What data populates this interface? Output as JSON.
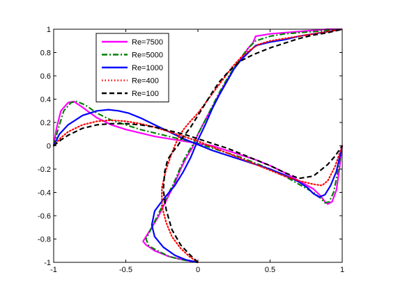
{
  "chart_data": {
    "type": "line",
    "title": "",
    "xlabel": "",
    "ylabel": "",
    "xlim": [
      -1,
      1
    ],
    "ylim": [
      -1,
      1
    ],
    "xticks": [
      -1,
      -0.5,
      0,
      0.5,
      1
    ],
    "xtick_labels": [
      "-1",
      "-0.5",
      "0",
      "0.5",
      "1"
    ],
    "yticks": [
      -1,
      -0.8,
      -0.6,
      -0.4,
      -0.2,
      0,
      0.2,
      0.4,
      0.6,
      0.8,
      1
    ],
    "ytick_labels": [
      "-1",
      "-0.8",
      "-0.6",
      "-0.4",
      "-0.2",
      "0",
      "0.2",
      "0.4",
      "0.6",
      "0.8",
      "1"
    ],
    "grid": false,
    "legend_position": "top-left",
    "series": [
      {
        "name": "Re=7500",
        "color": "#ff00ff",
        "dash": "solid",
        "curves": [
          {
            "x": [
              -1,
              -0.98,
              -0.95,
              -0.9,
              -0.86,
              -0.8,
              -0.7,
              -0.6,
              -0.5,
              -0.4,
              -0.3,
              -0.2,
              -0.1,
              0,
              0.1,
              0.2,
              0.3,
              0.4,
              0.5,
              0.6,
              0.7,
              0.8,
              0.85,
              0.88,
              0.9,
              0.93,
              0.96,
              0.98,
              1
            ],
            "y": [
              0,
              0.15,
              0.3,
              0.37,
              0.38,
              0.33,
              0.24,
              0.18,
              0.14,
              0.11,
              0.08,
              0.06,
              0.04,
              0.02,
              0.0,
              -0.04,
              -0.08,
              -0.12,
              -0.17,
              -0.23,
              -0.3,
              -0.37,
              -0.43,
              -0.48,
              -0.5,
              -0.48,
              -0.38,
              -0.2,
              0
            ]
          },
          {
            "x": [
              0.0,
              -0.1,
              -0.2,
              -0.3,
              -0.36,
              -0.38,
              -0.33,
              -0.28,
              -0.24,
              -0.2,
              -0.16,
              -0.12,
              -0.08,
              -0.04,
              0.0,
              0.05,
              0.1,
              0.15,
              0.2,
              0.25,
              0.3,
              0.35,
              0.38,
              0.4,
              0.5,
              0.6,
              0.7,
              0.8,
              0.9,
              1.0
            ],
            "y": [
              -1.0,
              -0.98,
              -0.95,
              -0.9,
              -0.85,
              -0.82,
              -0.72,
              -0.62,
              -0.52,
              -0.42,
              -0.32,
              -0.2,
              -0.1,
              -0.02,
              0.1,
              0.22,
              0.33,
              0.45,
              0.56,
              0.66,
              0.75,
              0.84,
              0.88,
              0.94,
              0.96,
              0.97,
              0.98,
              0.99,
              1.0,
              1.0
            ]
          }
        ]
      },
      {
        "name": "Re=5000",
        "color": "#008000",
        "dash": "dashdot",
        "curves": [
          {
            "x": [
              -1,
              -0.97,
              -0.93,
              -0.88,
              -0.84,
              -0.78,
              -0.7,
              -0.6,
              -0.5,
              -0.4,
              -0.3,
              -0.2,
              -0.1,
              0,
              0.1,
              0.2,
              0.3,
              0.4,
              0.5,
              0.6,
              0.7,
              0.8,
              0.85,
              0.88,
              0.91,
              0.94,
              0.97,
              1
            ],
            "y": [
              0,
              0.14,
              0.3,
              0.37,
              0.38,
              0.35,
              0.28,
              0.22,
              0.18,
              0.14,
              0.11,
              0.08,
              0.05,
              0.02,
              -0.02,
              -0.06,
              -0.1,
              -0.15,
              -0.2,
              -0.26,
              -0.33,
              -0.4,
              -0.45,
              -0.49,
              -0.48,
              -0.4,
              -0.22,
              0
            ]
          },
          {
            "x": [
              0.0,
              -0.1,
              -0.2,
              -0.28,
              -0.34,
              -0.36,
              -0.32,
              -0.28,
              -0.24,
              -0.2,
              -0.16,
              -0.12,
              -0.08,
              -0.04,
              0.0,
              0.05,
              0.1,
              0.15,
              0.2,
              0.25,
              0.3,
              0.35,
              0.4,
              0.5,
              0.6,
              0.7,
              0.8,
              0.9,
              1.0
            ],
            "y": [
              -1.0,
              -0.98,
              -0.95,
              -0.9,
              -0.86,
              -0.8,
              -0.7,
              -0.6,
              -0.5,
              -0.4,
              -0.3,
              -0.18,
              -0.08,
              0.0,
              0.1,
              0.22,
              0.34,
              0.46,
              0.57,
              0.67,
              0.76,
              0.84,
              0.9,
              0.94,
              0.96,
              0.97,
              0.98,
              0.99,
              1.0
            ]
          }
        ]
      },
      {
        "name": "Re=1000",
        "color": "#0000ff",
        "dash": "solid",
        "curves": [
          {
            "x": [
              -1,
              -0.96,
              -0.9,
              -0.8,
              -0.7,
              -0.62,
              -0.55,
              -0.48,
              -0.4,
              -0.3,
              -0.2,
              -0.1,
              0,
              0.1,
              0.2,
              0.3,
              0.4,
              0.5,
              0.6,
              0.7,
              0.76,
              0.8,
              0.84,
              0.88,
              0.92,
              0.96,
              1
            ],
            "y": [
              0,
              0.1,
              0.18,
              0.26,
              0.3,
              0.31,
              0.3,
              0.28,
              0.24,
              0.18,
              0.12,
              0.06,
              0.01,
              -0.04,
              -0.08,
              -0.12,
              -0.16,
              -0.2,
              -0.25,
              -0.31,
              -0.36,
              -0.41,
              -0.44,
              -0.42,
              -0.34,
              -0.22,
              0
            ]
          },
          {
            "x": [
              0.0,
              -0.08,
              -0.16,
              -0.24,
              -0.3,
              -0.32,
              -0.3,
              -0.24,
              -0.16,
              -0.1,
              -0.05,
              0.0,
              0.05,
              0.1,
              0.15,
              0.2,
              0.25,
              0.3,
              0.35,
              0.4,
              0.5,
              0.6,
              0.7,
              0.8,
              0.9,
              1.0
            ],
            "y": [
              -1.0,
              -0.98,
              -0.94,
              -0.87,
              -0.78,
              -0.68,
              -0.56,
              -0.46,
              -0.34,
              -0.22,
              -0.1,
              0.05,
              0.18,
              0.32,
              0.44,
              0.55,
              0.66,
              0.74,
              0.8,
              0.86,
              0.89,
              0.91,
              0.94,
              0.96,
              0.98,
              1.0
            ]
          }
        ]
      },
      {
        "name": "Re=400",
        "color": "#ff0000",
        "dash": "dotted",
        "curves": [
          {
            "x": [
              -1,
              -0.95,
              -0.9,
              -0.8,
              -0.7,
              -0.6,
              -0.5,
              -0.4,
              -0.3,
              -0.2,
              -0.1,
              0,
              0.1,
              0.2,
              0.3,
              0.4,
              0.5,
              0.6,
              0.7,
              0.8,
              0.86,
              0.9,
              0.95,
              1
            ],
            "y": [
              0,
              0.07,
              0.12,
              0.18,
              0.21,
              0.22,
              0.21,
              0.19,
              0.16,
              0.12,
              0.08,
              0.04,
              -0.01,
              -0.06,
              -0.11,
              -0.16,
              -0.21,
              -0.26,
              -0.3,
              -0.33,
              -0.34,
              -0.3,
              -0.18,
              0
            ]
          },
          {
            "x": [
              0.0,
              -0.06,
              -0.12,
              -0.18,
              -0.22,
              -0.25,
              -0.25,
              -0.22,
              -0.18,
              -0.14,
              -0.1,
              -0.06,
              0.0,
              0.06,
              0.12,
              0.18,
              0.24,
              0.3,
              0.36,
              0.42,
              0.5,
              0.6,
              0.7,
              0.8,
              0.9,
              1.0
            ],
            "y": [
              -1.0,
              -0.95,
              -0.88,
              -0.78,
              -0.66,
              -0.52,
              -0.36,
              -0.2,
              -0.06,
              0.06,
              0.14,
              0.2,
              0.28,
              0.38,
              0.48,
              0.58,
              0.68,
              0.76,
              0.82,
              0.87,
              0.9,
              0.92,
              0.94,
              0.96,
              0.98,
              1.0
            ]
          }
        ]
      },
      {
        "name": "Re=100",
        "color": "#000000",
        "dash": "dashed",
        "curves": [
          {
            "x": [
              -1,
              -0.95,
              -0.9,
              -0.8,
              -0.7,
              -0.6,
              -0.5,
              -0.4,
              -0.3,
              -0.2,
              -0.1,
              0,
              0.1,
              0.2,
              0.3,
              0.4,
              0.5,
              0.6,
              0.7,
              0.8,
              0.9,
              0.95,
              1
            ],
            "y": [
              0,
              0.05,
              0.09,
              0.15,
              0.18,
              0.19,
              0.19,
              0.18,
              0.16,
              0.13,
              0.1,
              0.06,
              0.02,
              -0.02,
              -0.07,
              -0.12,
              -0.17,
              -0.23,
              -0.28,
              -0.26,
              -0.16,
              -0.09,
              0
            ]
          },
          {
            "x": [
              0.0,
              -0.06,
              -0.12,
              -0.18,
              -0.22,
              -0.24,
              -0.23,
              -0.21,
              -0.18,
              -0.14,
              -0.1,
              -0.05,
              0.0,
              0.05,
              0.1,
              0.15,
              0.2,
              0.25,
              0.3,
              0.38,
              0.5,
              0.6,
              0.7,
              0.8,
              0.9,
              1.0
            ],
            "y": [
              -1.0,
              -0.93,
              -0.85,
              -0.72,
              -0.55,
              -0.38,
              -0.22,
              -0.12,
              -0.06,
              0.0,
              0.08,
              0.16,
              0.26,
              0.36,
              0.46,
              0.55,
              0.62,
              0.68,
              0.73,
              0.78,
              0.84,
              0.88,
              0.92,
              0.95,
              0.97,
              1.0
            ]
          }
        ]
      }
    ]
  }
}
